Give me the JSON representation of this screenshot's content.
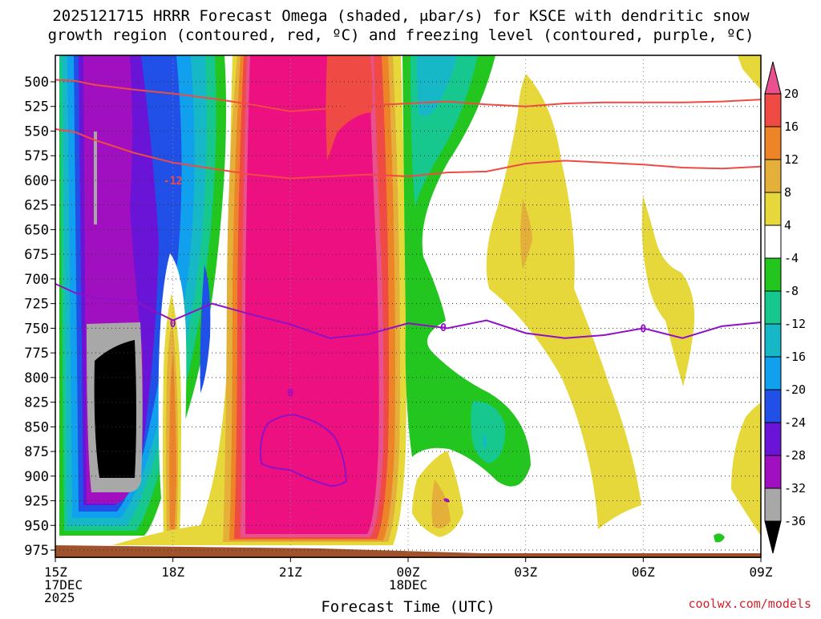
{
  "title_lines": [
    "2025121715 HRRR Forecast Omega (shaded, μbar/s) for KSCE with dendritic snow",
    "growth region (contoured, red, ºC) and freezing level (contoured, purple, ºC)"
  ],
  "credit": "coolwx.com/models",
  "chart_data": {
    "type": "heatmap",
    "xlabel": "Forecast Time (UTC)",
    "ylabel": "",
    "x_ticks": [
      {
        "hour": 15,
        "label": [
          "15Z",
          "17DEC",
          "2025"
        ]
      },
      {
        "hour": 18,
        "label": [
          "18Z"
        ]
      },
      {
        "hour": 21,
        "label": [
          "21Z"
        ]
      },
      {
        "hour": 24,
        "label": [
          "00Z",
          "18DEC"
        ]
      },
      {
        "hour": 27,
        "label": [
          "03Z"
        ]
      },
      {
        "hour": 30,
        "label": [
          "06Z"
        ]
      },
      {
        "hour": 33,
        "label": [
          "09Z"
        ]
      }
    ],
    "xlim_hours": [
      15,
      33
    ],
    "y_ticks": [
      500,
      525,
      550,
      575,
      600,
      625,
      650,
      675,
      700,
      725,
      750,
      775,
      800,
      825,
      850,
      875,
      900,
      925,
      950,
      975
    ],
    "ylim_mb": [
      468,
      990
    ],
    "y_axis_inverted": true,
    "grid": true,
    "colorbar": {
      "levels": [
        20,
        16,
        12,
        8,
        4,
        -4,
        -8,
        -12,
        -16,
        -20,
        -24,
        -28,
        -32,
        -36
      ],
      "colors": [
        "#e8508e",
        "#f04a44",
        "#ee8428",
        "#e4b03a",
        "#e6d83a",
        "#ffffff",
        "#22c61e",
        "#16c88e",
        "#16b8c8",
        "#10a0ee",
        "#2050e8",
        "#6a14d8",
        "#a010c0",
        "#a8a8a8",
        "#000000"
      ]
    },
    "contour_labels": [
      {
        "text": "-12",
        "color": "#f04a44",
        "hour": 18.0,
        "mb": 600
      },
      {
        "text": "0",
        "color": "#9010c8",
        "hour": 18.0,
        "mb": 745
      },
      {
        "text": "0",
        "color": "#9010c8",
        "hour": 21.0,
        "mb": 815
      },
      {
        "text": "0",
        "color": "#9010c8",
        "hour": 24.9,
        "mb": 749
      },
      {
        "text": "0",
        "color": "#9010c8",
        "hour": 30.0,
        "mb": 750
      }
    ],
    "series": [
      {
        "color": "#f04a44",
        "x": [
          15,
          15.5,
          16,
          17,
          18,
          19,
          20,
          21,
          22,
          23,
          24,
          25,
          26,
          27,
          28,
          29,
          30,
          31,
          32,
          33
        ],
        "y": [
          498,
          499,
          503,
          508,
          512,
          517,
          523,
          530,
          527,
          524,
          522,
          520,
          523,
          525,
          522,
          521,
          521,
          521,
          520,
          518
        ]
      },
      {
        "color": "#f04a44",
        "x": [
          15,
          15.5,
          16,
          17,
          18,
          19,
          20,
          21,
          22,
          23,
          24,
          25,
          26,
          27,
          28,
          29,
          30,
          31,
          32,
          33
        ],
        "y": [
          548,
          551,
          559,
          572,
          582,
          588,
          594,
          598,
          596,
          594,
          596,
          592,
          591,
          583,
          580,
          582,
          584,
          587,
          588,
          586
        ]
      },
      {
        "color": "#9010c8",
        "x": [
          15,
          15.5,
          16,
          17,
          18,
          19,
          20,
          21,
          22,
          23,
          24,
          25,
          26,
          27,
          28,
          29,
          30,
          31,
          32,
          33
        ],
        "y": [
          705,
          714,
          719,
          722,
          742,
          725,
          736,
          746,
          760,
          756,
          745,
          750,
          742,
          755,
          760,
          757,
          750,
          760,
          748,
          744
        ]
      }
    ]
  }
}
